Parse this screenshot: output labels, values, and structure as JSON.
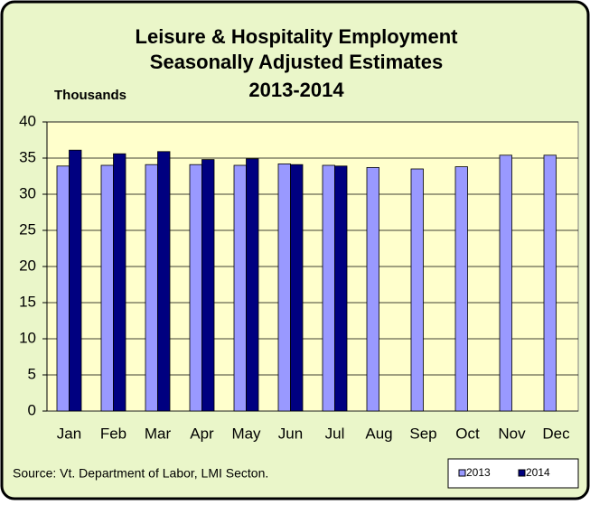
{
  "chart_data": {
    "type": "bar",
    "title": [
      "Leisure & Hospitality Employment",
      "Seasonally Adjusted Estimates",
      "2013-2014"
    ],
    "y_label": "Thousands",
    "source": "Source: Vt. Department of Labor, LMI Secton.",
    "categories": [
      "Jan",
      "Feb",
      "Mar",
      "Apr",
      "May",
      "Jun",
      "Jul",
      "Aug",
      "Sep",
      "Oct",
      "Nov",
      "Dec"
    ],
    "series": [
      {
        "name": "2013",
        "color": "#9999ff",
        "values": [
          33.9,
          34.0,
          34.1,
          34.1,
          34.0,
          34.2,
          34.0,
          33.7,
          33.5,
          33.8,
          35.4,
          35.4
        ]
      },
      {
        "name": "2014",
        "color": "#000080",
        "values": [
          36.1,
          35.6,
          35.9,
          34.8,
          34.9,
          34.1,
          33.9,
          null,
          null,
          null,
          null,
          null
        ]
      }
    ],
    "ylim": [
      0,
      40
    ],
    "yticks": [
      0,
      5,
      10,
      15,
      20,
      25,
      30,
      35,
      40
    ],
    "grid": true,
    "legend": "bottom-right"
  }
}
